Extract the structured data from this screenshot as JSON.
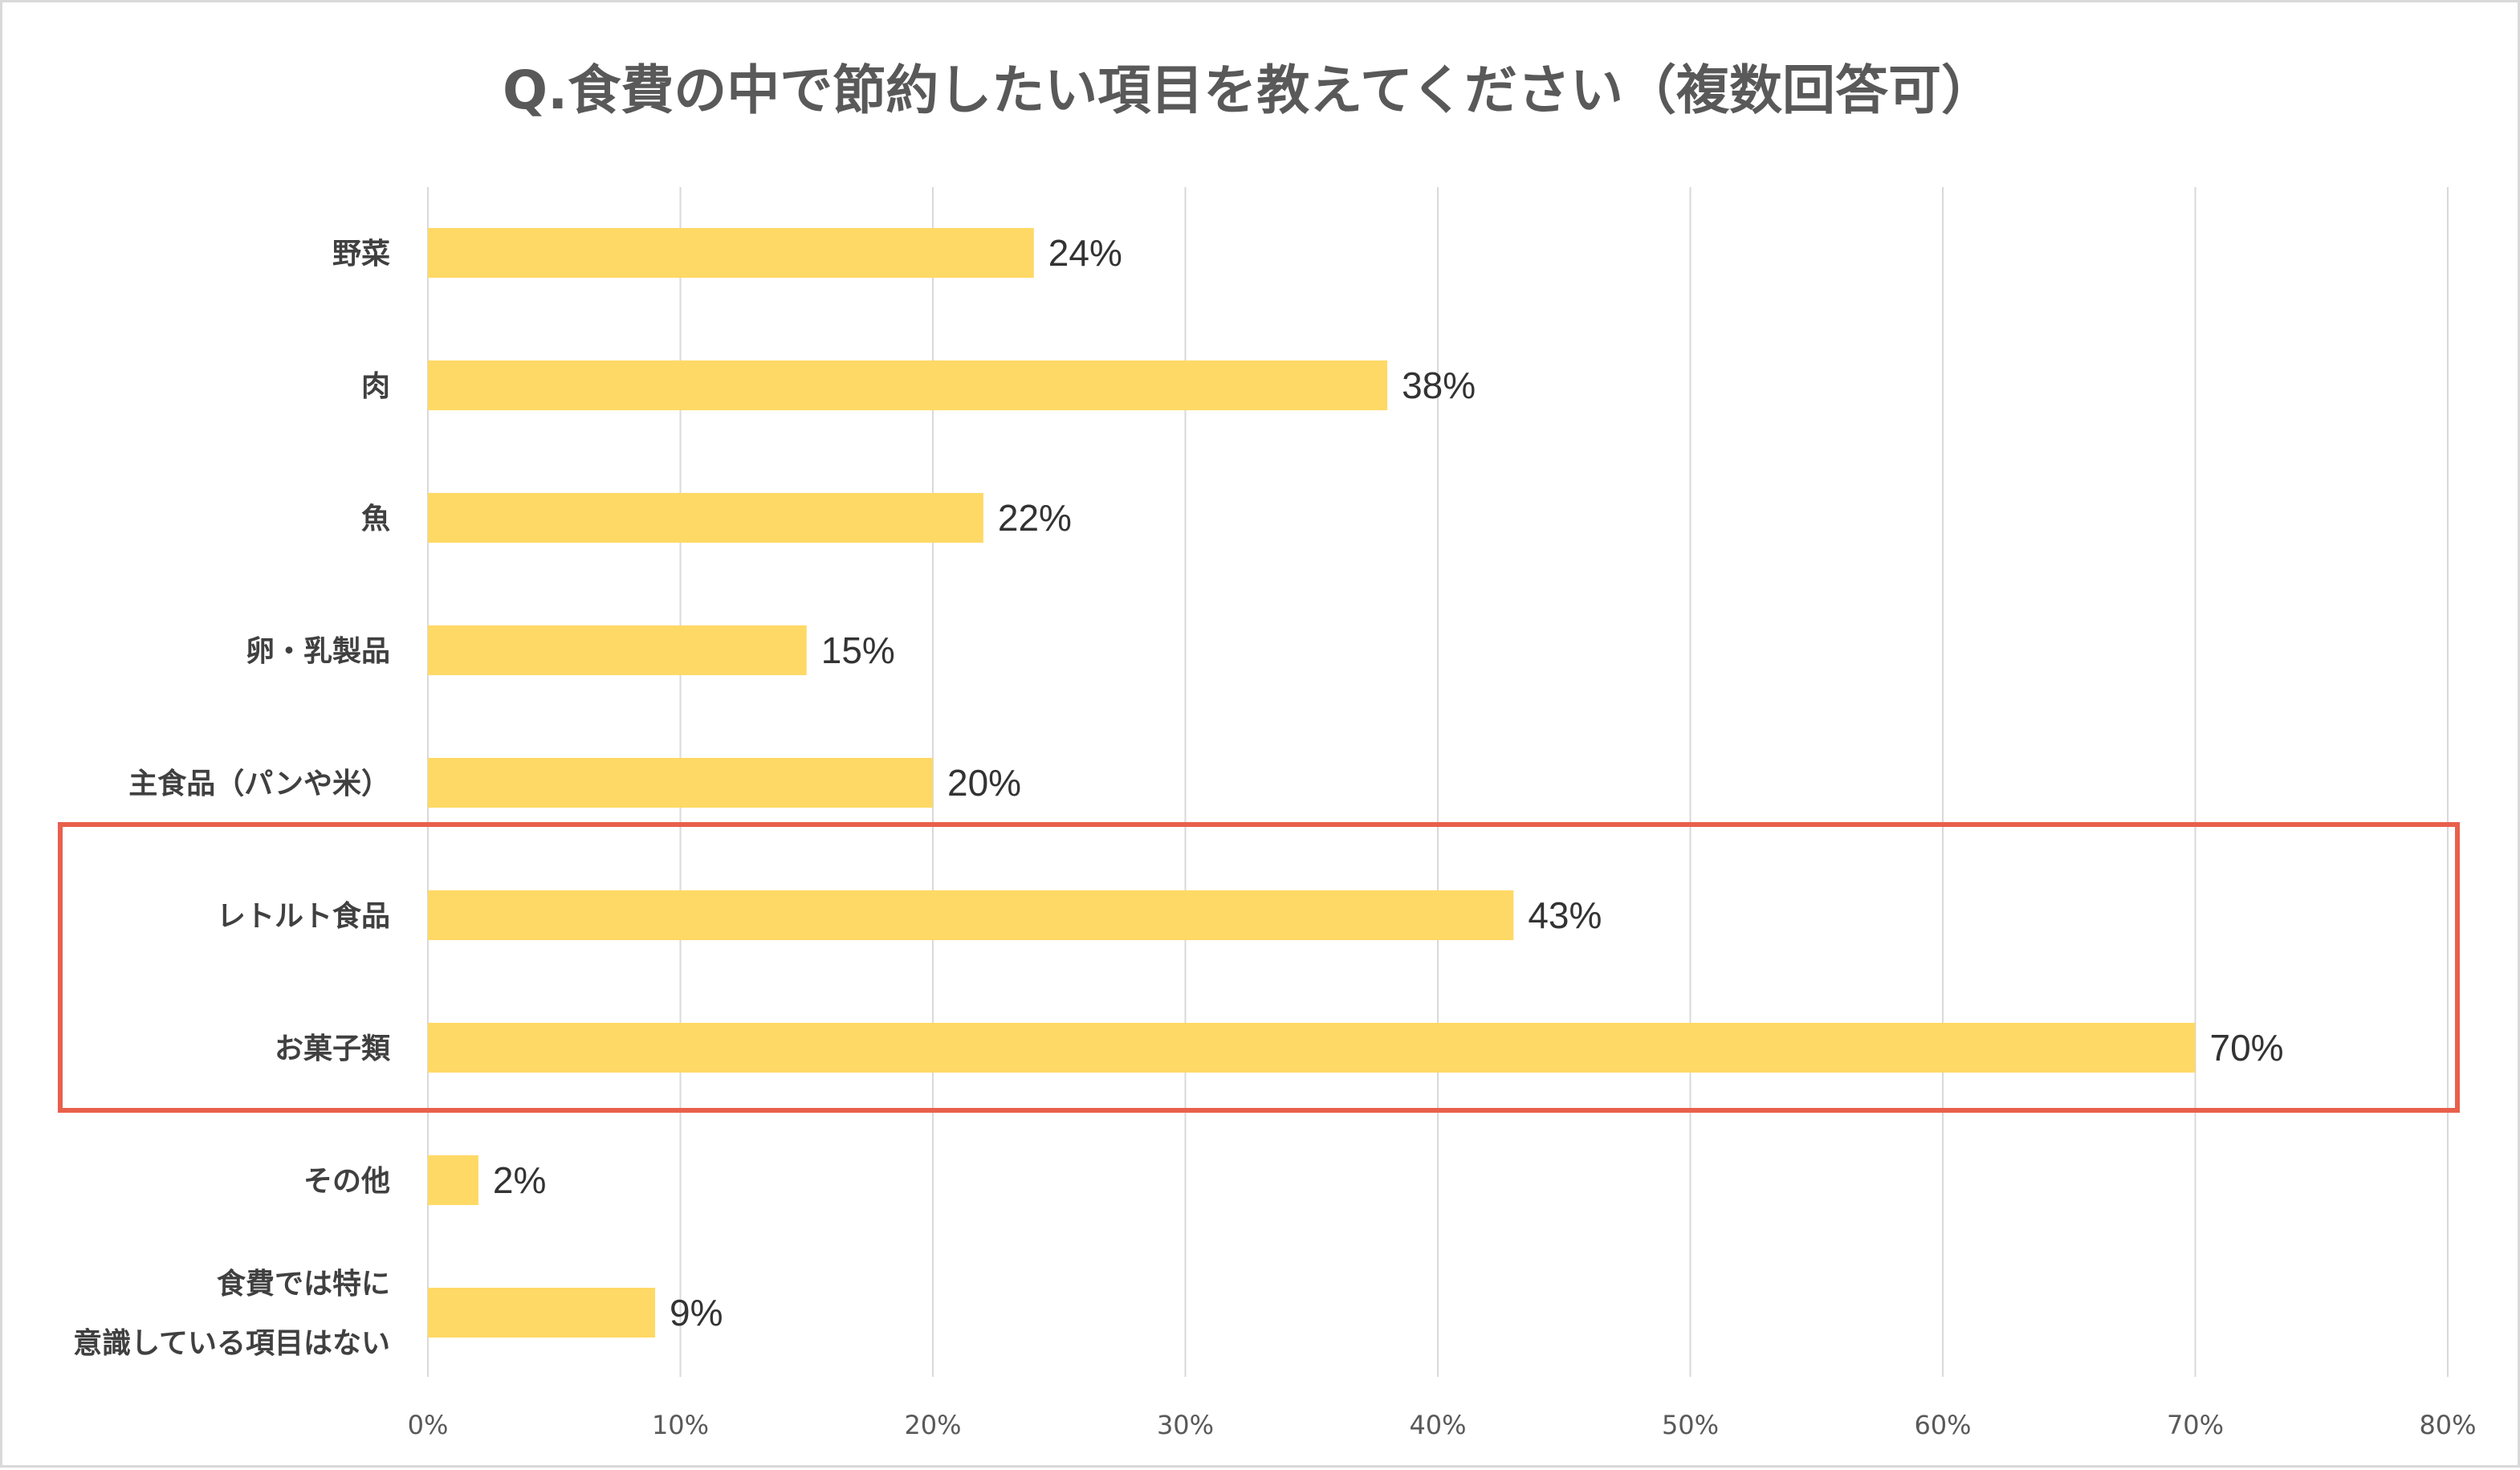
{
  "chart_data": {
    "type": "bar",
    "orientation": "horizontal",
    "title": "Q.食費の中で節約したい項目を教えてください（複数回答可）",
    "categories": [
      [
        "野菜"
      ],
      [
        "肉"
      ],
      [
        "魚"
      ],
      [
        "卵・乳製品"
      ],
      [
        "主食品（パンや米）"
      ],
      [
        "レトルト食品"
      ],
      [
        "お菓子類"
      ],
      [
        "その他"
      ],
      [
        "食費では特に",
        "意識している項目はない"
      ]
    ],
    "values": [
      24,
      38,
      22,
      15,
      20,
      43,
      70,
      2,
      9
    ],
    "data_labels": [
      "24%",
      "38%",
      "22%",
      "15%",
      "20%",
      "43%",
      "70%",
      "2%",
      "9%"
    ],
    "xlim": [
      0,
      80
    ],
    "x_ticks": [
      0,
      10,
      20,
      30,
      40,
      50,
      60,
      70,
      80
    ],
    "x_tick_labels": [
      "0%",
      "10%",
      "20%",
      "30%",
      "40%",
      "50%",
      "60%",
      "70%",
      "80%"
    ],
    "xlabel": "",
    "ylabel": "",
    "grid": "vertical",
    "legend": "none",
    "highlighted_categories": [
      "レトルト食品",
      "お菓子類"
    ],
    "colors": {
      "bar": "#FFD966",
      "highlight_box": "#E8604C",
      "grid": "#d9d9d9",
      "title": "#595959",
      "category_text": "#404040",
      "tick_text": "#595959",
      "data_label_text": "#333333"
    }
  }
}
